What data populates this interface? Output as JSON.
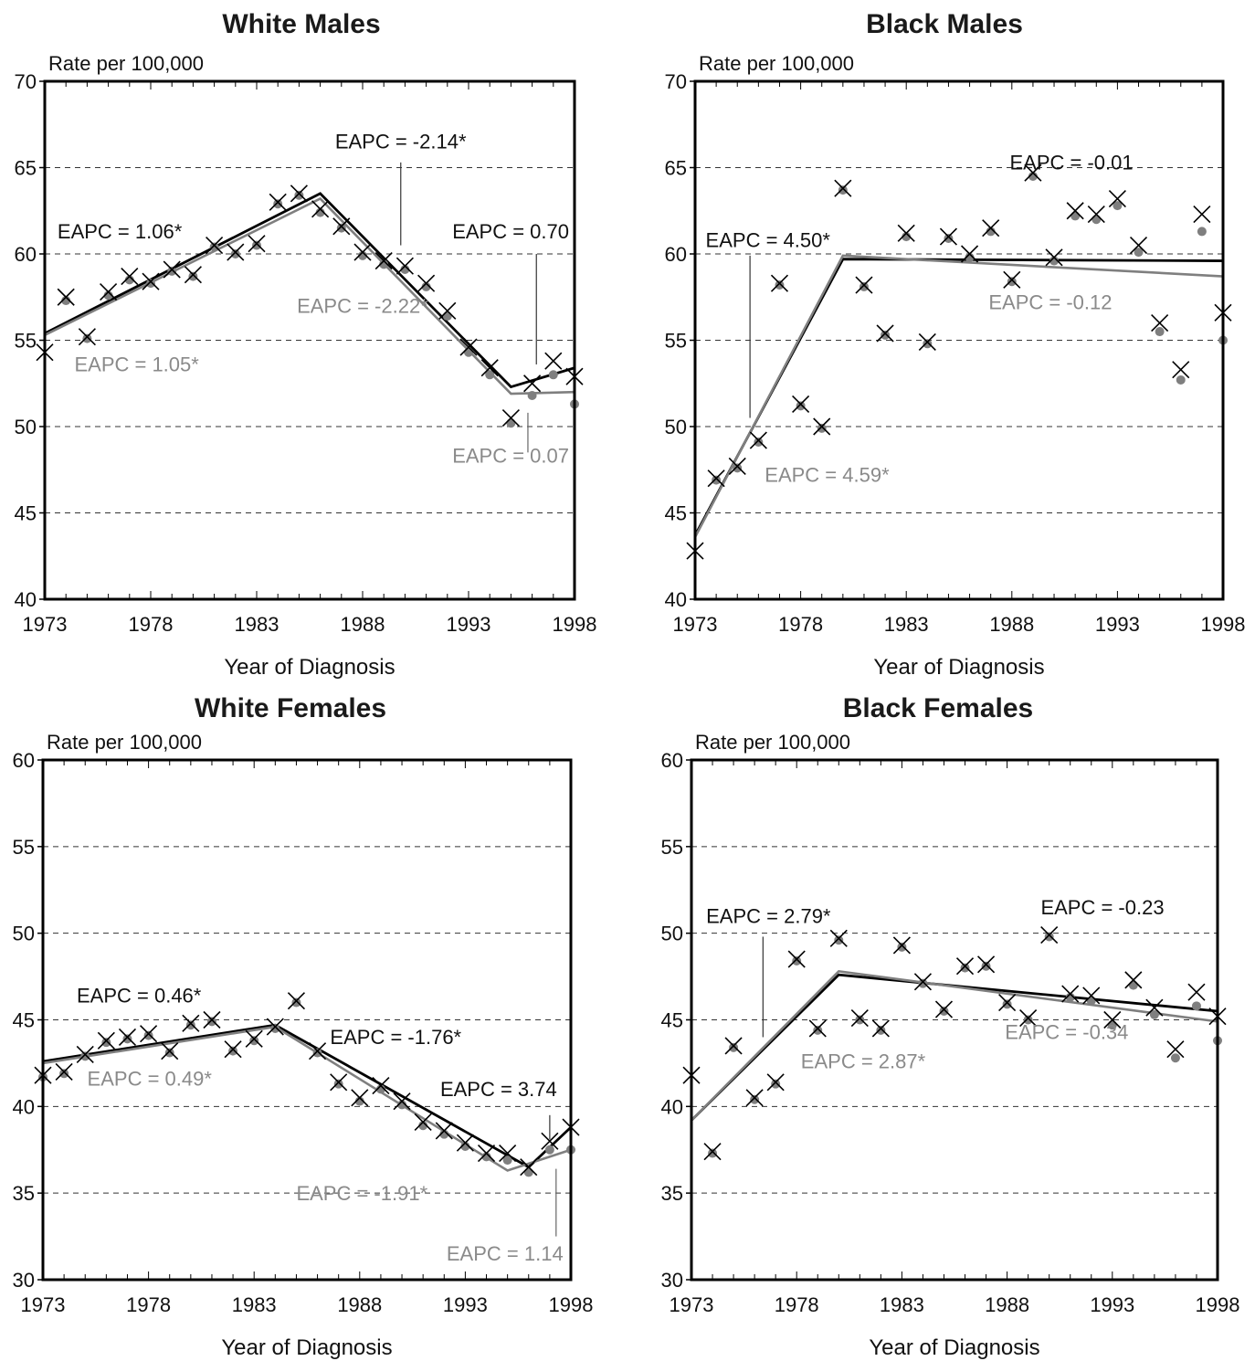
{
  "colors": {
    "observed_line": "#000000",
    "modeled_line": "#7f7f7f",
    "grid": "#333333",
    "text_gray": "#8a8a8a"
  },
  "markers": {
    "observed": "cross",
    "modeled": "dot"
  },
  "chart_data": [
    {
      "type": "line",
      "title": "White Males",
      "ylabel": "Rate per 100,000",
      "xlabel": "Year of Diagnosis",
      "xlim": [
        1973,
        1998
      ],
      "ylim": [
        40,
        70
      ],
      "yticks": [
        40,
        45,
        50,
        55,
        60,
        65,
        70
      ],
      "xticks": [
        1973,
        1978,
        1983,
        1988,
        1993,
        1998
      ],
      "grid": "dashed horizontal",
      "series": [
        {
          "marker": "cross",
          "x": [
            1973,
            1974,
            1975,
            1976,
            1977,
            1978,
            1979,
            1980,
            1981,
            1982,
            1983,
            1984,
            1985,
            1986,
            1987,
            1988,
            1989,
            1990,
            1991,
            1992,
            1993,
            1994,
            1995,
            1996,
            1997,
            1998
          ],
          "values": [
            54.3,
            57.5,
            55.2,
            57.8,
            58.7,
            58.4,
            59.1,
            58.8,
            60.5,
            60.1,
            60.6,
            63.0,
            63.5,
            62.6,
            61.6,
            60.1,
            59.6,
            59.3,
            58.3,
            56.7,
            54.6,
            53.4,
            50.5,
            52.5,
            53.8,
            52.9
          ]
        },
        {
          "marker": "dot",
          "x": [
            1974,
            1975,
            1976,
            1977,
            1978,
            1979,
            1980,
            1981,
            1982,
            1983,
            1984,
            1985,
            1986,
            1987,
            1988,
            1989,
            1990,
            1991,
            1992,
            1993,
            1994,
            1995,
            1996,
            1997,
            1998
          ],
          "values": [
            57.3,
            55.1,
            57.6,
            58.5,
            58.3,
            59.0,
            58.7,
            60.4,
            60.0,
            60.5,
            62.9,
            63.4,
            62.4,
            61.5,
            59.9,
            59.4,
            59.1,
            58.1,
            56.4,
            54.3,
            53.0,
            50.2,
            51.8,
            53.0,
            51.3
          ]
        },
        {
          "line": "observed-fit",
          "x": [
            1973,
            1986,
            1995,
            1998
          ],
          "values": [
            55.4,
            63.5,
            52.3,
            53.4
          ]
        },
        {
          "line": "modeled-fit",
          "x": [
            1973,
            1986,
            1995,
            1998
          ],
          "values": [
            55.3,
            63.2,
            51.9,
            52.0
          ]
        }
      ],
      "annotations": [
        {
          "text": "EAPC = 1.06*",
          "shade": "black",
          "x": 1973.6,
          "y": 60.9,
          "anchor": "start"
        },
        {
          "text": "EAPC = 1.05*",
          "shade": "gray",
          "x": 1974.4,
          "y": 53.2,
          "anchor": "start"
        },
        {
          "text": "EAPC = -2.14*",
          "shade": "black",
          "x": 1986.7,
          "y": 66.1,
          "anchor": "start",
          "leader": [
            1989.8,
            65.3,
            1989.8,
            60.5
          ]
        },
        {
          "text": "EAPC = -2.22*",
          "shade": "gray",
          "x": 1984.9,
          "y": 56.6,
          "anchor": "start"
        },
        {
          "text": "EAPC = 0.70",
          "shade": "black",
          "x": 1998,
          "y": 60.9,
          "anchor": "end",
          "leader": [
            1996.2,
            60.0,
            1996.2,
            53.6
          ]
        },
        {
          "text": "EAPC = 0.07",
          "shade": "gray",
          "x": 1998,
          "y": 47.9,
          "anchor": "end",
          "leader": [
            1995.8,
            50.8,
            1995.8,
            48.5
          ]
        }
      ]
    },
    {
      "type": "line",
      "title": "Black Males",
      "ylabel": "Rate per 100,000",
      "xlabel": "Year of Diagnosis",
      "xlim": [
        1973,
        1998
      ],
      "ylim": [
        40,
        70
      ],
      "yticks": [
        40,
        45,
        50,
        55,
        60,
        65,
        70
      ],
      "xticks": [
        1973,
        1978,
        1983,
        1988,
        1993,
        1998
      ],
      "grid": "dashed horizontal",
      "series": [
        {
          "marker": "cross",
          "x": [
            1973,
            1974,
            1975,
            1976,
            1977,
            1978,
            1979,
            1980,
            1981,
            1982,
            1983,
            1984,
            1985,
            1986,
            1987,
            1988,
            1989,
            1990,
            1991,
            1992,
            1993,
            1994,
            1995,
            1996,
            1997,
            1998
          ],
          "values": [
            42.8,
            47.0,
            47.7,
            49.2,
            58.3,
            51.3,
            50.0,
            63.8,
            58.2,
            55.4,
            61.2,
            54.9,
            61.0,
            60.0,
            61.5,
            58.5,
            64.7,
            59.8,
            62.5,
            62.3,
            63.2,
            60.5,
            56.0,
            53.3,
            62.3,
            56.6
          ]
        },
        {
          "marker": "dot",
          "x": [
            1974,
            1975,
            1976,
            1977,
            1978,
            1979,
            1980,
            1981,
            1982,
            1983,
            1984,
            1985,
            1986,
            1987,
            1988,
            1989,
            1990,
            1991,
            1992,
            1993,
            1994,
            1995,
            1996,
            1997,
            1998
          ],
          "values": [
            46.9,
            47.6,
            49.1,
            58.2,
            51.2,
            49.9,
            63.7,
            58.1,
            55.3,
            61.0,
            54.8,
            60.9,
            59.8,
            61.3,
            58.4,
            64.5,
            59.6,
            62.2,
            62.0,
            62.8,
            60.1,
            55.5,
            52.7,
            61.3,
            55.0
          ]
        },
        {
          "line": "observed-fit",
          "x": [
            1973,
            1980,
            1998
          ],
          "values": [
            43.7,
            59.7,
            59.6
          ]
        },
        {
          "line": "modeled-fit",
          "x": [
            1973,
            1980,
            1998
          ],
          "values": [
            43.6,
            59.9,
            58.7
          ]
        }
      ],
      "annotations": [
        {
          "text": "EAPC = 4.50*",
          "shade": "black",
          "x": 1973.5,
          "y": 60.4,
          "anchor": "start",
          "leader": [
            1975.6,
            59.9,
            1975.6,
            50.5
          ]
        },
        {
          "text": "EAPC = 4.59*",
          "shade": "gray",
          "x": 1976.3,
          "y": 46.8,
          "anchor": "start"
        },
        {
          "text": "EAPC = -0.01",
          "shade": "black",
          "x": 1987.9,
          "y": 64.9,
          "anchor": "start"
        },
        {
          "text": "EAPC = -0.12",
          "shade": "gray",
          "x": 1986.9,
          "y": 56.8,
          "anchor": "start"
        }
      ]
    },
    {
      "type": "line",
      "title": "White Females",
      "ylabel": "Rate per 100,000",
      "xlabel": "Year of Diagnosis",
      "xlim": [
        1973,
        1998
      ],
      "ylim": [
        30,
        60
      ],
      "yticks": [
        30,
        35,
        40,
        45,
        50,
        55,
        60
      ],
      "xticks": [
        1973,
        1978,
        1983,
        1988,
        1993,
        1998
      ],
      "grid": "dashed horizontal",
      "series": [
        {
          "marker": "cross",
          "x": [
            1973,
            1974,
            1975,
            1976,
            1977,
            1978,
            1979,
            1980,
            1981,
            1982,
            1983,
            1984,
            1985,
            1986,
            1987,
            1988,
            1989,
            1990,
            1991,
            1992,
            1993,
            1994,
            1995,
            1996,
            1997,
            1998
          ],
          "values": [
            41.8,
            42.0,
            43.0,
            43.8,
            44.0,
            44.2,
            43.2,
            44.8,
            45.0,
            43.3,
            43.9,
            44.6,
            46.1,
            43.2,
            41.4,
            40.5,
            41.2,
            40.3,
            39.1,
            38.6,
            37.9,
            37.3,
            37.3,
            36.5,
            38.0,
            38.8
          ]
        },
        {
          "marker": "dot",
          "x": [
            1973,
            1974,
            1975,
            1976,
            1977,
            1978,
            1979,
            1980,
            1981,
            1982,
            1983,
            1984,
            1985,
            1986,
            1987,
            1988,
            1989,
            1990,
            1991,
            1992,
            1993,
            1994,
            1995,
            1996,
            1997,
            1998
          ],
          "values": [
            41.7,
            41.9,
            42.9,
            43.7,
            43.9,
            44.1,
            43.1,
            44.7,
            44.9,
            43.2,
            43.8,
            44.5,
            46.0,
            43.1,
            41.3,
            40.3,
            41.0,
            40.1,
            38.9,
            38.4,
            37.7,
            37.1,
            36.9,
            36.2,
            37.5,
            37.5
          ]
        },
        {
          "line": "observed-fit",
          "x": [
            1973,
            1984,
            1996,
            1998
          ],
          "values": [
            42.6,
            44.7,
            36.5,
            38.8
          ]
        },
        {
          "line": "modeled-fit",
          "x": [
            1973,
            1984,
            1995,
            1998
          ],
          "values": [
            42.5,
            44.6,
            36.3,
            37.5
          ]
        }
      ],
      "annotations": [
        {
          "text": "EAPC = 0.46*",
          "shade": "black",
          "x": 1974.6,
          "y": 46.0,
          "anchor": "start"
        },
        {
          "text": "EAPC = 0.49*",
          "shade": "gray",
          "x": 1975.1,
          "y": 41.2,
          "anchor": "start"
        },
        {
          "text": "EAPC = -1.76*",
          "shade": "black",
          "x": 1986.6,
          "y": 43.6,
          "anchor": "start"
        },
        {
          "text": "EAPC = -1.91*",
          "shade": "gray",
          "x": 1985.0,
          "y": 34.6,
          "anchor": "start"
        },
        {
          "text": "EAPC = 3.74",
          "shade": "black",
          "x": 1997.6,
          "y": 40.6,
          "anchor": "end",
          "leader": [
            1997.0,
            39.5,
            1997.0,
            38.1
          ]
        },
        {
          "text": "EAPC = 1.14",
          "shade": "gray",
          "x": 1997.9,
          "y": 31.1,
          "anchor": "end",
          "leader": [
            1997.3,
            36.4,
            1997.3,
            32.5
          ]
        }
      ]
    },
    {
      "type": "line",
      "title": "Black Females",
      "ylabel": "Rate per 100,000",
      "xlabel": "Year of Diagnosis",
      "xlim": [
        1973,
        1998
      ],
      "ylim": [
        30,
        60
      ],
      "yticks": [
        30,
        35,
        40,
        45,
        50,
        55,
        60
      ],
      "xticks": [
        1973,
        1978,
        1983,
        1988,
        1993,
        1998
      ],
      "grid": "dashed horizontal",
      "series": [
        {
          "marker": "cross",
          "x": [
            1973,
            1974,
            1975,
            1976,
            1977,
            1978,
            1979,
            1980,
            1981,
            1982,
            1983,
            1984,
            1985,
            1986,
            1987,
            1988,
            1989,
            1990,
            1991,
            1992,
            1993,
            1994,
            1995,
            1996,
            1997,
            1998
          ],
          "values": [
            41.8,
            37.4,
            43.5,
            40.5,
            41.4,
            48.5,
            44.5,
            49.7,
            45.1,
            44.5,
            49.3,
            47.2,
            45.6,
            48.1,
            48.2,
            46.0,
            45.1,
            49.9,
            46.5,
            46.4,
            45.0,
            47.3,
            45.7,
            43.3,
            46.6,
            45.2
          ]
        },
        {
          "marker": "dot",
          "x": [
            1974,
            1975,
            1976,
            1977,
            1978,
            1979,
            1980,
            1981,
            1982,
            1983,
            1984,
            1985,
            1986,
            1987,
            1988,
            1989,
            1990,
            1991,
            1992,
            1993,
            1994,
            1995,
            1996,
            1997,
            1998
          ],
          "values": [
            37.3,
            43.4,
            40.4,
            41.3,
            48.4,
            44.4,
            49.6,
            45.0,
            44.4,
            49.2,
            47.1,
            45.5,
            48.0,
            48.1,
            45.9,
            45.0,
            49.8,
            46.3,
            46.1,
            44.7,
            47.0,
            45.3,
            42.8,
            45.8,
            43.8
          ]
        },
        {
          "line": "observed-fit",
          "x": [
            1973,
            1980,
            1998
          ],
          "values": [
            39.2,
            47.6,
            45.5
          ]
        },
        {
          "line": "modeled-fit",
          "x": [
            1973,
            1980,
            1998
          ],
          "values": [
            39.2,
            47.8,
            44.9
          ]
        }
      ],
      "annotations": [
        {
          "text": "EAPC = 2.79*",
          "shade": "black",
          "x": 1973.7,
          "y": 50.6,
          "anchor": "start",
          "leader": [
            1976.4,
            49.8,
            1976.4,
            44.0
          ]
        },
        {
          "text": "EAPC = 2.87*",
          "shade": "gray",
          "x": 1978.2,
          "y": 42.2,
          "anchor": "start"
        },
        {
          "text": "EAPC = -0.23",
          "shade": "black",
          "x": 1989.6,
          "y": 51.1,
          "anchor": "start"
        },
        {
          "text": "EAPC = -0.34",
          "shade": "gray",
          "x": 1987.9,
          "y": 43.9,
          "anchor": "start"
        }
      ]
    }
  ]
}
